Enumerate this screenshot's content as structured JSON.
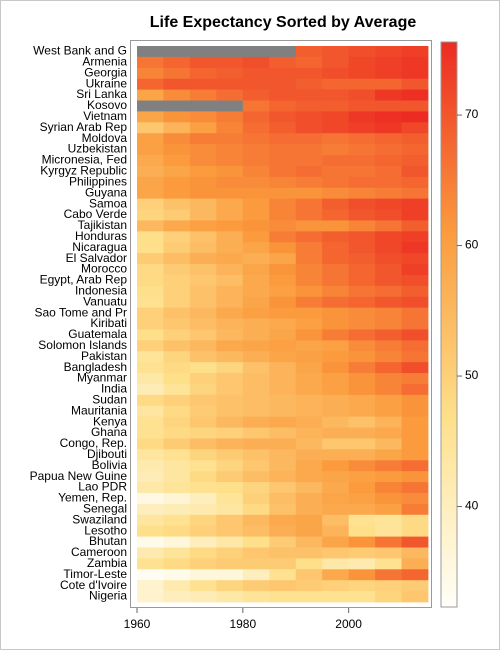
{
  "chart_data": {
    "type": "heatmap",
    "title": "Life Expectancy Sorted by Average",
    "x": [
      1960,
      1965,
      1970,
      1975,
      1980,
      1985,
      1990,
      1995,
      2000,
      2005,
      2010,
      2015
    ],
    "xlim": [
      1960,
      2015
    ],
    "xticks": [
      1960,
      1980,
      2000
    ],
    "zlim": [
      32.3,
      75.6
    ],
    "zticks": [
      40,
      50,
      60,
      70
    ],
    "colors": [
      "#fffff8",
      "#fee08b",
      "#fb9a3d",
      "#ec2b22"
    ],
    "missing_color": "#808080",
    "categories": [
      "West Bank and G",
      "Armenia",
      "Georgia",
      "Ukraine",
      "Sri Lanka",
      "Kosovo",
      "Vietnam",
      "Syrian Arab Rep",
      "Moldova",
      "Uzbekistan",
      "Micronesia, Fed",
      "Kyrgyz Republic",
      "Philippines",
      "Guyana",
      "Samoa",
      "Cabo Verde",
      "Tajikistan",
      "Honduras",
      "Nicaragua",
      "El Salvador",
      "Morocco",
      "Egypt, Arab Rep",
      "Indonesia",
      "Vanuatu",
      "Sao Tome and Pr",
      "Kiribati",
      "Guatemala",
      "Solomon Islands",
      "Pakistan",
      "Bangladesh",
      "Myanmar",
      "India",
      "Sudan",
      "Mauritania",
      "Kenya",
      "Ghana",
      "Congo, Rep.",
      "Djibouti",
      "Bolivia",
      "Papua New Guine",
      "Lao PDR",
      "Yemen, Rep.",
      "Senegal",
      "Swaziland",
      "Lesotho",
      "Bhutan",
      "Cameroon",
      "Zambia",
      "Timor-Leste",
      "Cote d'Ivoire",
      "Nigeria"
    ],
    "values": [
      [
        null,
        null,
        null,
        null,
        null,
        null,
        69,
        70,
        71,
        72,
        73
      ],
      [
        66,
        68,
        70,
        70,
        71,
        69,
        68,
        70,
        72,
        73,
        74
      ],
      [
        64,
        66,
        68,
        69,
        70,
        70,
        70,
        71,
        72,
        73,
        74
      ],
      [
        68,
        70,
        70,
        70,
        70,
        70,
        69,
        68,
        68,
        68,
        70
      ],
      [
        59,
        63,
        65,
        67,
        69,
        70,
        70,
        70,
        71,
        74,
        75
      ],
      [
        null,
        null,
        null,
        null,
        66,
        68,
        69,
        69,
        70,
        70,
        70
      ],
      [
        59,
        62,
        63,
        65,
        68,
        70,
        71,
        72,
        74,
        75,
        76
      ],
      [
        52,
        56,
        60,
        64,
        67,
        69,
        71,
        72,
        73,
        74,
        72
      ],
      [
        60,
        63,
        65,
        65,
        66,
        67,
        67,
        66,
        67,
        68,
        69
      ],
      [
        60,
        62,
        63,
        64,
        65,
        66,
        66,
        65,
        66,
        67,
        68
      ],
      [
        58,
        61,
        63,
        64,
        65,
        66,
        66,
        67,
        67,
        68,
        69
      ],
      [
        57,
        59,
        61,
        62,
        64,
        66,
        67,
        66,
        66,
        67,
        70
      ],
      [
        59,
        61,
        62,
        63,
        63,
        64,
        65,
        66,
        67,
        67,
        68
      ],
      [
        59,
        61,
        62,
        62,
        62,
        62,
        62,
        63,
        64,
        65,
        66
      ],
      [
        50,
        53,
        55,
        58,
        61,
        64,
        66,
        69,
        71,
        72,
        73
      ],
      [
        49,
        51,
        55,
        58,
        61,
        64,
        66,
        68,
        70,
        71,
        73
      ],
      [
        55,
        58,
        60,
        61,
        62,
        63,
        62,
        62,
        64,
        66,
        69
      ],
      [
        47,
        50,
        53,
        57,
        61,
        65,
        67,
        69,
        70,
        72,
        73
      ],
      [
        47,
        51,
        54,
        57,
        59,
        62,
        65,
        68,
        70,
        72,
        74
      ],
      [
        51,
        54,
        57,
        58,
        57,
        59,
        65,
        68,
        69,
        71,
        72
      ],
      [
        48,
        51,
        53,
        56,
        59,
        62,
        64,
        66,
        68,
        70,
        73
      ],
      [
        48,
        50,
        52,
        54,
        58,
        61,
        64,
        66,
        68,
        70,
        71
      ],
      [
        47,
        50,
        53,
        56,
        58,
        60,
        62,
        64,
        66,
        67,
        69
      ],
      [
        46,
        50,
        53,
        56,
        59,
        62,
        65,
        67,
        68,
        70,
        71
      ],
      [
        50,
        53,
        55,
        58,
        60,
        61,
        61,
        62,
        63,
        64,
        66
      ],
      [
        50,
        52,
        54,
        56,
        57,
        58,
        60,
        62,
        63,
        64,
        66
      ],
      [
        47,
        50,
        52,
        55,
        57,
        59,
        62,
        65,
        67,
        69,
        71
      ],
      [
        50,
        53,
        55,
        58,
        59,
        60,
        59,
        60,
        63,
        65,
        67
      ],
      [
        45,
        49,
        53,
        55,
        57,
        59,
        60,
        61,
        62,
        64,
        66
      ],
      [
        46,
        48,
        47,
        49,
        53,
        56,
        59,
        62,
        65,
        68,
        71
      ],
      [
        43,
        47,
        50,
        52,
        54,
        56,
        58,
        60,
        62,
        64,
        65
      ],
      [
        41,
        45,
        49,
        52,
        54,
        56,
        58,
        60,
        62,
        64,
        67
      ],
      [
        48,
        50,
        52,
        53,
        54,
        55,
        56,
        57,
        58,
        60,
        62
      ],
      [
        44,
        48,
        51,
        53,
        54,
        55,
        56,
        57,
        58,
        60,
        62
      ],
      [
        46,
        49,
        52,
        55,
        57,
        58,
        57,
        55,
        53,
        56,
        61
      ],
      [
        46,
        48,
        49,
        50,
        52,
        54,
        56,
        57,
        57,
        58,
        61
      ],
      [
        48,
        51,
        54,
        56,
        57,
        57,
        55,
        52,
        52,
        55,
        61
      ],
      [
        44,
        46,
        49,
        51,
        53,
        55,
        57,
        57,
        57,
        59,
        61
      ],
      [
        42,
        44,
        46,
        49,
        52,
        55,
        58,
        61,
        63,
        65,
        67
      ],
      [
        41,
        44,
        48,
        51,
        54,
        56,
        58,
        59,
        60,
        61,
        62
      ],
      [
        43,
        45,
        46,
        47,
        49,
        52,
        55,
        58,
        61,
        64,
        66
      ],
      [
        35,
        37,
        40,
        45,
        50,
        54,
        57,
        59,
        60,
        62,
        63
      ],
      [
        40,
        41,
        42,
        44,
        48,
        53,
        57,
        58,
        58,
        60,
        65
      ],
      [
        44,
        46,
        49,
        52,
        55,
        58,
        59,
        54,
        46,
        45,
        48
      ],
      [
        47,
        48,
        50,
        52,
        54,
        57,
        59,
        56,
        47,
        45,
        48
      ],
      [
        34,
        36,
        40,
        43,
        47,
        51,
        55,
        59,
        62,
        66,
        70
      ],
      [
        42,
        45,
        48,
        50,
        52,
        53,
        53,
        52,
        51,
        52,
        55
      ],
      [
        46,
        48,
        50,
        51,
        51,
        51,
        47,
        43,
        42,
        46,
        57
      ],
      [
        33,
        34,
        36,
        36,
        40,
        46,
        52,
        58,
        62,
        66,
        68
      ],
      [
        38,
        42,
        46,
        49,
        51,
        52,
        51,
        50,
        49,
        50,
        51
      ],
      [
        38,
        40,
        41,
        43,
        45,
        46,
        46,
        46,
        46,
        49,
        52
      ]
    ]
  }
}
